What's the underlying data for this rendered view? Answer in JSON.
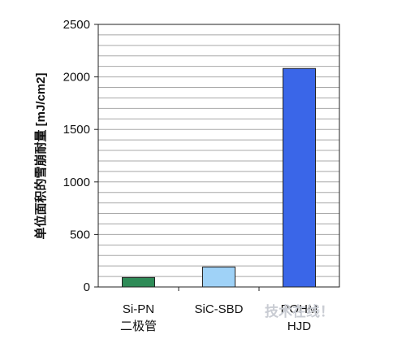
{
  "chart_data": {
    "type": "bar",
    "ylabel": "单位面积的雪崩耐量 [mJ/cm2]",
    "xlabel": "",
    "ylim": [
      0,
      2500
    ],
    "yticks": [
      0,
      500,
      1000,
      1500,
      2000,
      2500
    ],
    "grid": true,
    "categories": [
      [
        "Si-PN",
        "二极管"
      ],
      [
        "SiC-SBD"
      ],
      [
        "ROHM",
        "HJD"
      ]
    ],
    "values": [
      90,
      190,
      2080
    ],
    "colors": [
      "#2e8b57",
      "#9fd2f7",
      "#3a66e8"
    ]
  },
  "watermark": "技术在线！"
}
